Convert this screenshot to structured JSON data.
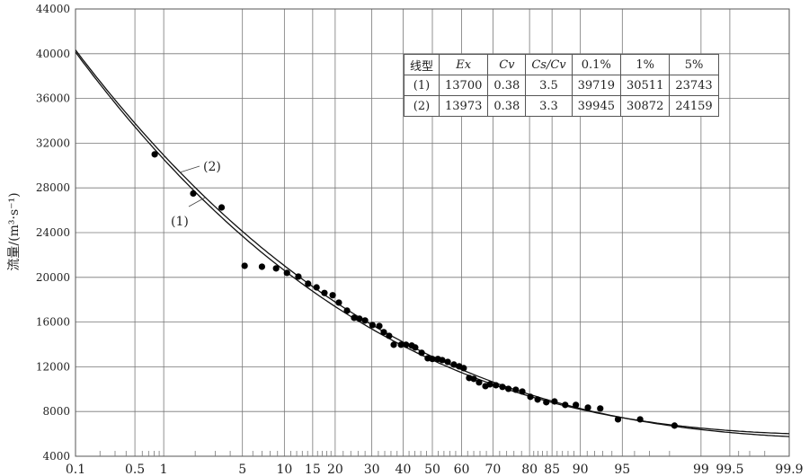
{
  "chart_data": {
    "type": "scatter",
    "title": "",
    "ylabel": "流量/(m³·s⁻¹)",
    "xlabel": "",
    "x_scale": "normal-probability",
    "ylim": [
      4000,
      44000
    ],
    "xlim": [
      0.1,
      99.9
    ],
    "grid": true,
    "y_ticks": [
      4000,
      8000,
      12000,
      16000,
      20000,
      24000,
      28000,
      32000,
      36000,
      40000,
      44000
    ],
    "x_ticks": [
      "0.1",
      "0.5",
      "1",
      "5",
      "10",
      "15",
      "20",
      "30",
      "40",
      "50",
      "60",
      "70",
      "80",
      "85",
      "90",
      "95",
      "99",
      "99.5",
      "99.9"
    ],
    "x_minor_ticks": [
      0.2,
      0.3,
      0.4,
      0.6,
      0.7,
      0.8,
      0.9,
      2,
      3,
      4,
      6,
      7,
      8,
      9,
      11,
      12,
      13,
      14,
      16,
      17,
      18,
      19,
      22,
      24,
      26,
      28,
      32,
      34,
      36,
      38,
      42,
      44,
      46,
      48,
      52,
      54,
      56,
      58,
      62,
      64,
      66,
      68,
      72,
      74,
      76,
      78,
      81,
      82,
      83,
      84,
      86,
      87,
      88,
      89,
      91,
      92,
      93,
      94,
      96,
      97,
      98,
      99.6,
      99.7,
      99.8
    ],
    "points": [
      [
        0.81,
        31000
      ],
      [
        1.92,
        27500
      ],
      [
        3.4,
        26250
      ],
      [
        5.2,
        21030
      ],
      [
        7.0,
        20950
      ],
      [
        8.8,
        20800
      ],
      [
        10.4,
        20400
      ],
      [
        12.3,
        20070
      ],
      [
        14.1,
        19430
      ],
      [
        15.8,
        19100
      ],
      [
        17.5,
        18600
      ],
      [
        19.4,
        18400
      ],
      [
        20.9,
        17740
      ],
      [
        23.0,
        17020
      ],
      [
        24.9,
        16380
      ],
      [
        26.4,
        16300
      ],
      [
        28.0,
        16140
      ],
      [
        30.2,
        15730
      ],
      [
        32.3,
        15650
      ],
      [
        33.7,
        15100
      ],
      [
        35.4,
        14770
      ],
      [
        36.9,
        13970
      ],
      [
        39.3,
        13970
      ],
      [
        41.0,
        13970
      ],
      [
        42.9,
        13900
      ],
      [
        44.1,
        13730
      ],
      [
        46.3,
        13250
      ],
      [
        48.4,
        12760
      ],
      [
        50.0,
        12700
      ],
      [
        51.9,
        12700
      ],
      [
        53.4,
        12600
      ],
      [
        55.3,
        12440
      ],
      [
        57.4,
        12200
      ],
      [
        59.2,
        12040
      ],
      [
        60.7,
        11880
      ],
      [
        62.5,
        11000
      ],
      [
        64.0,
        10920
      ],
      [
        65.7,
        10600
      ],
      [
        67.7,
        10270
      ],
      [
        69.1,
        10430
      ],
      [
        70.9,
        10350
      ],
      [
        72.8,
        10200
      ],
      [
        74.5,
        10030
      ],
      [
        76.5,
        9950
      ],
      [
        78.2,
        9790
      ],
      [
        80.2,
        9310
      ],
      [
        81.9,
        9070
      ],
      [
        83.8,
        8830
      ],
      [
        85.5,
        8900
      ],
      [
        87.5,
        8590
      ],
      [
        89.3,
        8590
      ],
      [
        91.1,
        8350
      ],
      [
        92.7,
        8270
      ],
      [
        94.6,
        7300
      ],
      [
        96.4,
        7300
      ],
      [
        98.2,
        6740
      ]
    ],
    "curves": [
      {
        "name": "(1)",
        "Ex": 13700,
        "Cv": 0.38,
        "Cs_Cv": 3.5
      },
      {
        "name": "(2)",
        "Ex": 13973,
        "Cv": 0.38,
        "Cs_Cv": 3.3
      }
    ],
    "table": {
      "headers": [
        "线型",
        "Ex",
        "Cv",
        "Cs/Cv",
        "0.1%",
        "1%",
        "5%"
      ],
      "rows": [
        [
          "(1)",
          "13700",
          "0.38",
          "3.5",
          "39719",
          "30511",
          "23743"
        ],
        [
          "(2)",
          "13973",
          "0.38",
          "3.3",
          "39945",
          "30872",
          "24159"
        ]
      ]
    }
  }
}
